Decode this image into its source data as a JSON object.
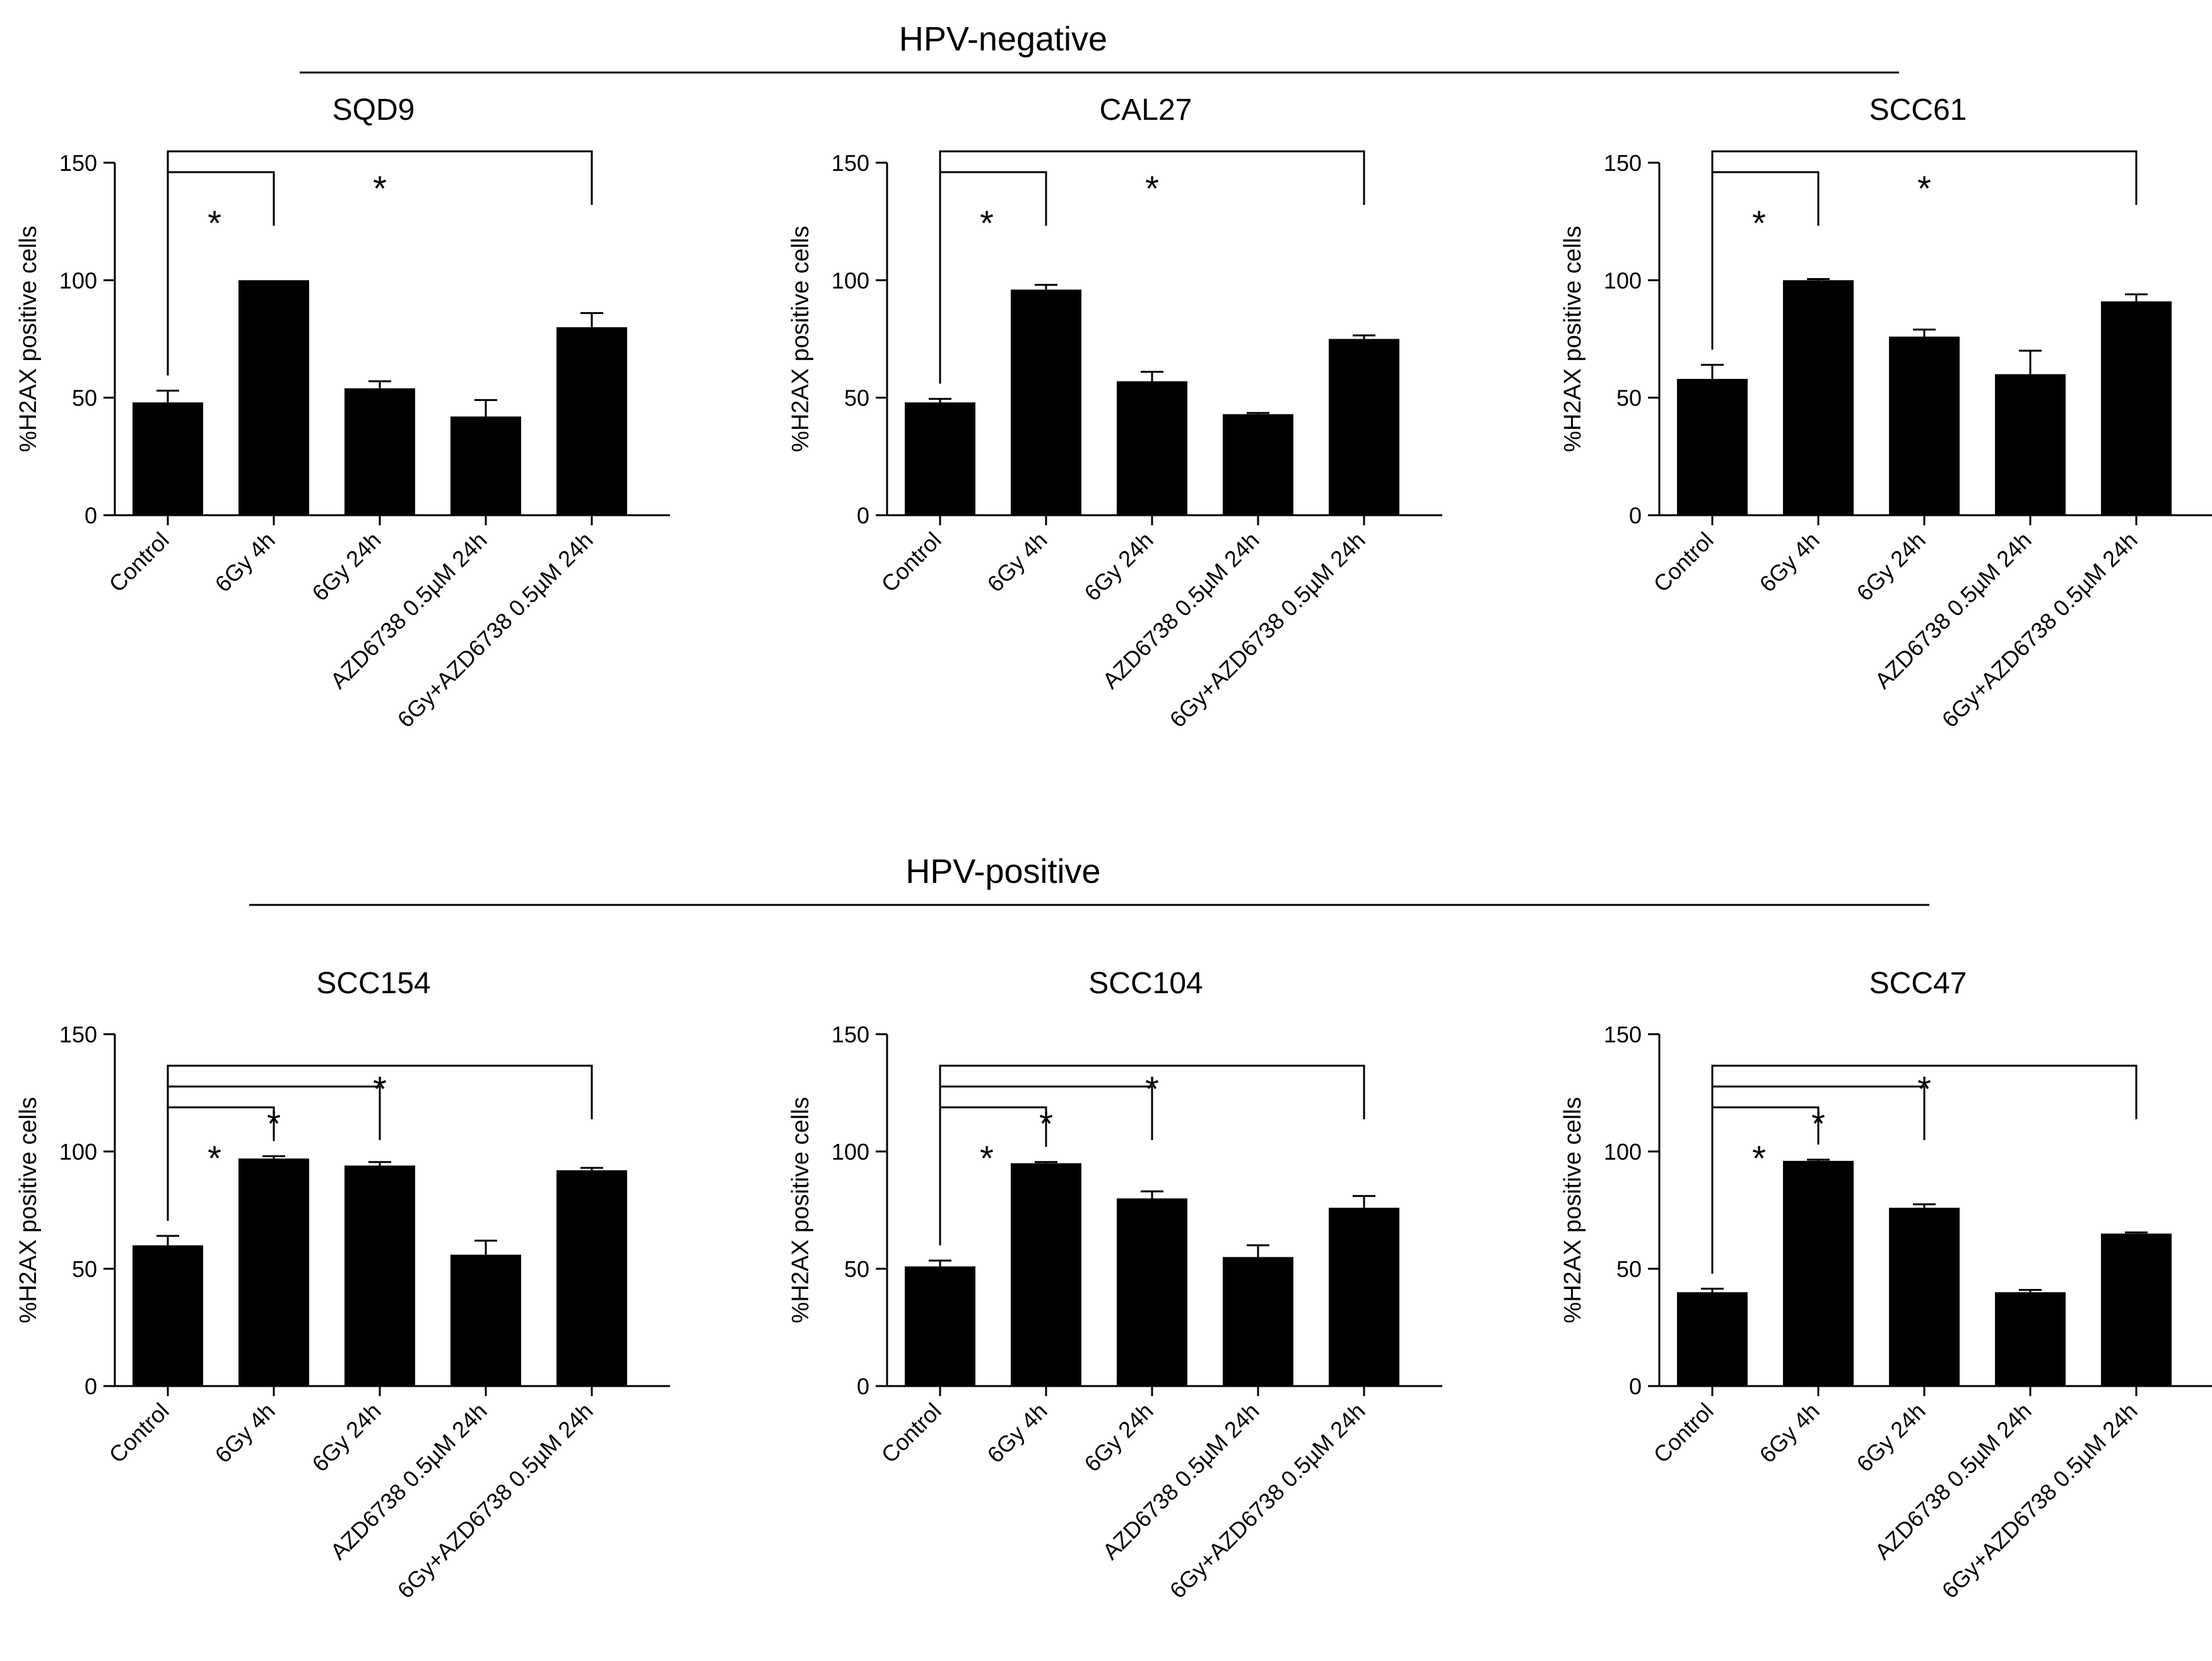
{
  "figure": {
    "groups": [
      "HPV-negative",
      "HPV-positive"
    ]
  },
  "chart_data": [
    {
      "type": "bar",
      "group": "HPV-negative",
      "title": "SQD9",
      "ylabel": "%H2AX positive cells",
      "xlabel": "",
      "ylim": [
        0,
        150
      ],
      "yticks": [
        "0",
        "50",
        "100",
        "150"
      ],
      "categories": [
        "Control",
        "6Gy 4h",
        "6Gy 24h",
        "AZD6738 0.5µM 24h",
        "6Gy+AZD6738 0.5µM 24h"
      ],
      "values": [
        48,
        100,
        54,
        42,
        80
      ],
      "errors": [
        5,
        0,
        3,
        7,
        6
      ],
      "significance": [
        {
          "from": 0,
          "to": 1,
          "label": "*",
          "level": 0
        },
        {
          "from": 0,
          "to": 4,
          "label": "*",
          "level": 1
        }
      ]
    },
    {
      "type": "bar",
      "group": "HPV-negative",
      "title": "CAL27",
      "ylabel": "%H2AX positive cells",
      "xlabel": "",
      "ylim": [
        0,
        150
      ],
      "yticks": [
        "0",
        "50",
        "100",
        "150"
      ],
      "categories": [
        "Control",
        "6Gy 4h",
        "6Gy 24h",
        "AZD6738 0.5µM 24h",
        "6Gy+AZD6738 0.5µM 24h"
      ],
      "values": [
        48,
        96,
        57,
        43,
        75
      ],
      "errors": [
        1.5,
        2,
        4,
        0.5,
        1.5
      ],
      "significance": [
        {
          "from": 0,
          "to": 1,
          "label": "*",
          "level": 0
        },
        {
          "from": 0,
          "to": 4,
          "label": "*",
          "level": 1
        }
      ]
    },
    {
      "type": "bar",
      "group": "HPV-negative",
      "title": "SCC61",
      "ylabel": "%H2AX positive cells",
      "xlabel": "",
      "ylim": [
        0,
        150
      ],
      "yticks": [
        "0",
        "50",
        "100",
        "150"
      ],
      "categories": [
        "Control",
        "6Gy 4h",
        "6Gy 24h",
        "AZD6738 0.5µM 24h",
        "6Gy+AZD6738 0.5µM 24h"
      ],
      "values": [
        58,
        100,
        76,
        60,
        91
      ],
      "errors": [
        6,
        0.5,
        3,
        10,
        3
      ],
      "significance": [
        {
          "from": 0,
          "to": 1,
          "label": "*",
          "level": 0
        },
        {
          "from": 0,
          "to": 4,
          "label": "*",
          "level": 1
        }
      ]
    },
    {
      "type": "bar",
      "group": "HPV-positive",
      "title": "SCC154",
      "ylabel": "%H2AX positive cells",
      "xlabel": "",
      "ylim": [
        0,
        150
      ],
      "yticks": [
        "0",
        "50",
        "100",
        "150"
      ],
      "categories": [
        "Control",
        "6Gy 4h",
        "6Gy 24h",
        "AZD6738 0.5µM 24h",
        "6Gy+AZD6738 0.5µM 24h"
      ],
      "values": [
        60,
        97,
        94,
        56,
        92
      ],
      "errors": [
        4,
        1,
        1.5,
        6,
        1
      ],
      "significance": [
        {
          "from": 0,
          "to": 1,
          "label": "*",
          "level": 0
        },
        {
          "from": 0,
          "to": 2,
          "label": "*",
          "level": 1
        },
        {
          "from": 0,
          "to": 4,
          "label": "*",
          "level": 2
        }
      ]
    },
    {
      "type": "bar",
      "group": "HPV-positive",
      "title": "SCC104",
      "ylabel": "%H2AX positive cells",
      "xlabel": "",
      "ylim": [
        0,
        150
      ],
      "yticks": [
        "0",
        "50",
        "100",
        "150"
      ],
      "categories": [
        "Control",
        "6Gy 4h",
        "6Gy 24h",
        "AZD6738 0.5µM 24h",
        "6Gy+AZD6738 0.5µM 24h"
      ],
      "values": [
        51,
        95,
        80,
        55,
        76
      ],
      "errors": [
        2.5,
        0.5,
        3,
        5,
        5
      ],
      "significance": [
        {
          "from": 0,
          "to": 1,
          "label": "*",
          "level": 0
        },
        {
          "from": 0,
          "to": 2,
          "label": "*",
          "level": 1
        },
        {
          "from": 0,
          "to": 4,
          "label": "*",
          "level": 2
        }
      ]
    },
    {
      "type": "bar",
      "group": "HPV-positive",
      "title": "SCC47",
      "ylabel": "%H2AX positive cells",
      "xlabel": "",
      "ylim": [
        0,
        150
      ],
      "yticks": [
        "0",
        "50",
        "100",
        "150"
      ],
      "categories": [
        "Control",
        "6Gy 4h",
        "6Gy 24h",
        "AZD6738 0.5µM 24h",
        "6Gy+AZD6738 0.5µM 24h"
      ],
      "values": [
        40,
        96,
        76,
        40,
        65
      ],
      "errors": [
        1.5,
        0.5,
        1.5,
        1,
        0.5
      ],
      "significance": [
        {
          "from": 0,
          "to": 1,
          "label": "*",
          "level": 0
        },
        {
          "from": 0,
          "to": 2,
          "label": "*",
          "level": 1
        },
        {
          "from": 0,
          "to": 4,
          "label": "*",
          "level": 2
        }
      ]
    }
  ]
}
